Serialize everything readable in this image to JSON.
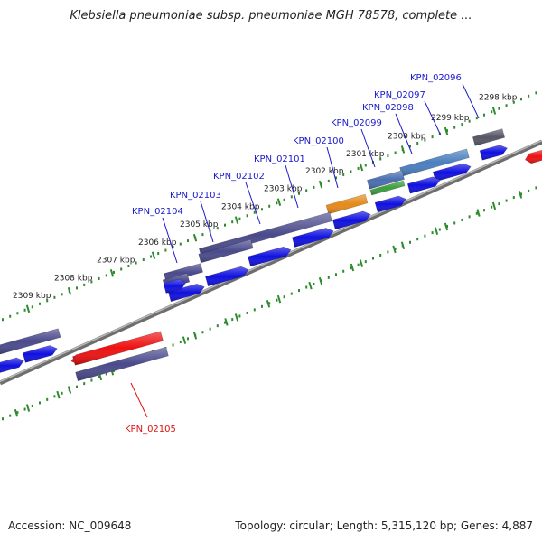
{
  "title": "Klebsiella pneumoniae subsp. pneumoniae MGH 78578, complete ...",
  "footer": {
    "accession": "Accession: NC_009648",
    "topology": "Topology: circular; Length: 5,315,120 bp; Genes: 4,887"
  },
  "colors": {
    "backbone": "#8a8a8a",
    "tick": "#2e8b2e",
    "gene_label": "#1a1acc",
    "gene_label_selected": "#dd1111",
    "cds": "#1010e0",
    "gene_default": "#4a4a8c",
    "selected": "#ee1111"
  },
  "ticks": [
    {
      "label": "2298 kbp"
    },
    {
      "label": "2299 kbp"
    },
    {
      "label": "2300 kbp"
    },
    {
      "label": "2301 kbp"
    },
    {
      "label": "2302 kbp"
    },
    {
      "label": "2303 kbp"
    },
    {
      "label": "2304 kbp"
    },
    {
      "label": "2305 kbp"
    },
    {
      "label": "2306 kbp"
    },
    {
      "label": "2307 kbp"
    },
    {
      "label": "2308 kbp"
    },
    {
      "label": "2309 kbp"
    }
  ],
  "genes": [
    {
      "label": "KPN_02096",
      "color": "#555566",
      "selected": false
    },
    {
      "label": "KPN_02097",
      "color": "#4a7fbf",
      "selected": false
    },
    {
      "label": "KPN_02098",
      "color": "#3a9e3a",
      "selected": false
    },
    {
      "label": "KPN_02099",
      "color": "#4a6fb0",
      "selected": false
    },
    {
      "label": "KPN_02100",
      "color": "#e58a1a",
      "selected": false
    },
    {
      "label": "KPN_02101",
      "color": "#4a4a8c",
      "selected": false
    },
    {
      "label": "KPN_02102",
      "color": "#4a4a8c",
      "selected": false
    },
    {
      "label": "KPN_02103",
      "color": "#4a4a8c",
      "selected": false
    },
    {
      "label": "KPN_02104",
      "color": "#4a4a8c",
      "selected": false
    },
    {
      "label": "KPN_02105",
      "color": "#ee1111",
      "selected": true
    }
  ]
}
